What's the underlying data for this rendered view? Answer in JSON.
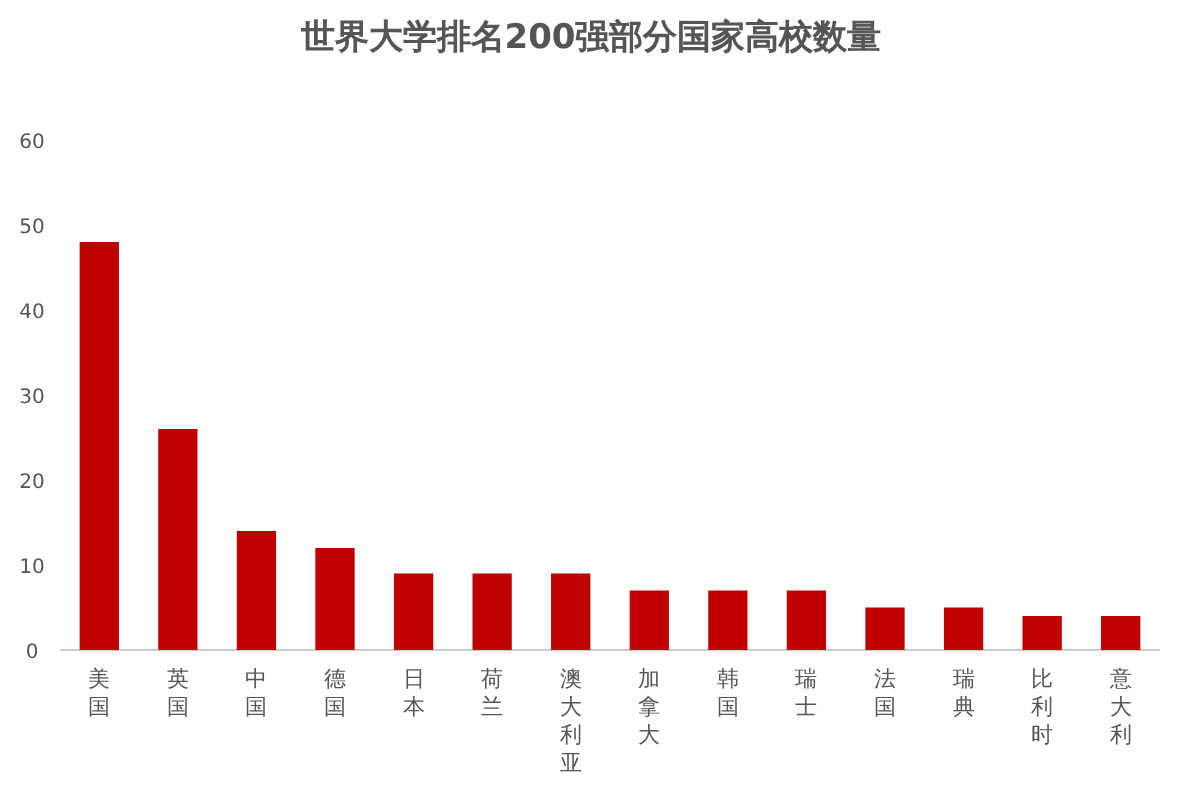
{
  "chart_data": {
    "type": "bar",
    "title": "世界大学排名200强部分国家高校数量",
    "categories": [
      "美国",
      "英国",
      "中国",
      "德国",
      "日本",
      "荷兰",
      "澳大利亚",
      "加拿大",
      "韩国",
      "瑞士",
      "法国",
      "瑞典",
      "比利时",
      "意大利"
    ],
    "values": [
      48,
      26,
      14,
      12,
      9,
      9,
      9,
      7,
      7,
      7,
      5,
      5,
      4,
      4
    ],
    "color": "#c00000",
    "ylim": [
      0,
      60
    ],
    "yticks": [
      0,
      10,
      20,
      30,
      40,
      50,
      60
    ],
    "grid": false
  }
}
